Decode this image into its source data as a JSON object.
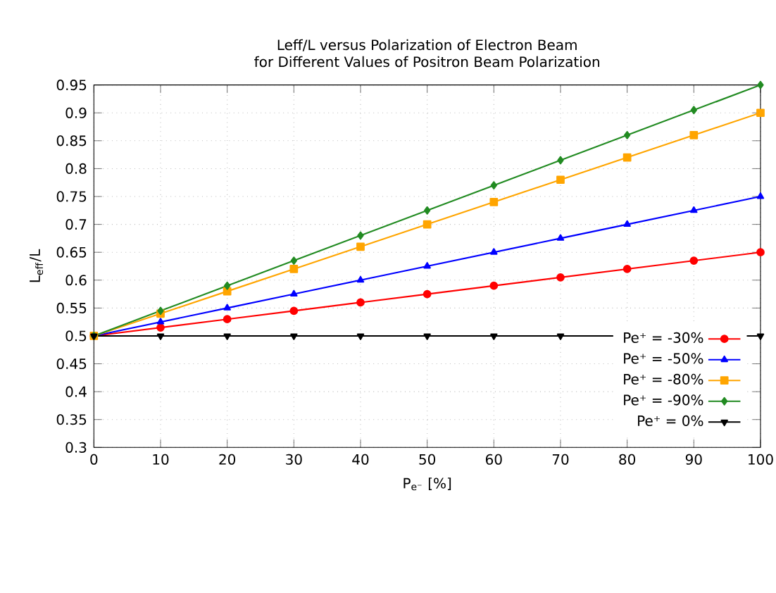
{
  "chart_data": {
    "type": "line",
    "title": "Leff/L versus Polarization of Electron Beam",
    "subtitle": "for Different Values of Positron Beam Polarization",
    "xlabel": "P$_{e⁻}$ [%]",
    "ylabel": "L$_{eff}$/L",
    "x": [
      0,
      10,
      20,
      30,
      40,
      50,
      60,
      70,
      80,
      90,
      100
    ],
    "series": [
      {
        "name": "Pe⁺ = -30%",
        "color": "#ff0000",
        "marker": "circle",
        "values": [
          0.5,
          0.515,
          0.53,
          0.545,
          0.56,
          0.575,
          0.59,
          0.605,
          0.62,
          0.635,
          0.65
        ]
      },
      {
        "name": "Pe⁺ = -50%",
        "color": "#0000ff",
        "marker": "triangle",
        "values": [
          0.5,
          0.525,
          0.55,
          0.575,
          0.6,
          0.625,
          0.65,
          0.675,
          0.7,
          0.725,
          0.75
        ]
      },
      {
        "name": "Pe⁺ = -80%",
        "color": "#ffa500",
        "marker": "square",
        "values": [
          0.5,
          0.54,
          0.58,
          0.62,
          0.66,
          0.7,
          0.74,
          0.78,
          0.82,
          0.86,
          0.9
        ]
      },
      {
        "name": "Pe⁺ = -90%",
        "color": "#228b22",
        "marker": "diamond",
        "values": [
          0.5,
          0.545,
          0.59,
          0.635,
          0.68,
          0.725,
          0.77,
          0.815,
          0.86,
          0.905,
          0.95
        ]
      },
      {
        "name": "Pe⁺ = 0%",
        "color": "#000000",
        "marker": "triangle-down",
        "values": [
          0.5,
          0.5,
          0.5,
          0.5,
          0.5,
          0.5,
          0.5,
          0.5,
          0.5,
          0.5,
          0.5
        ]
      }
    ],
    "xlim": [
      0,
      100
    ],
    "xticks": [
      0,
      10,
      20,
      30,
      40,
      50,
      60,
      70,
      80,
      90,
      100
    ],
    "ylim": [
      0.3,
      0.95
    ],
    "yticks": [
      0.3,
      0.35,
      0.4,
      0.45,
      0.5,
      0.55,
      0.6,
      0.65,
      0.7,
      0.75,
      0.8,
      0.85,
      0.9,
      0.95
    ],
    "grid": true,
    "legend": "bottom right",
    "line_style": "solid"
  }
}
